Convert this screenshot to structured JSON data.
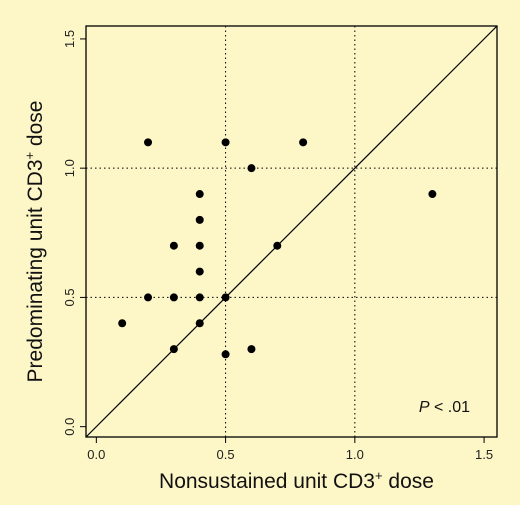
{
  "chart_data": {
    "type": "scatter",
    "title": "",
    "xlabel": "Nonsustained unit CD3",
    "xlabel_sup": "+",
    "xlabel_suffix": " dose",
    "ylabel": "Predominating unit CD3",
    "ylabel_sup": "+",
    "ylabel_suffix": " dose",
    "xlim": [
      -0.04,
      1.55
    ],
    "ylim": [
      -0.04,
      1.55
    ],
    "xticks": [
      "0.0",
      "0.5",
      "1.0",
      "1.5"
    ],
    "yticks": [
      "0.0",
      "0.5",
      "1.0",
      "1.5"
    ],
    "reference_lines": {
      "vertical": [
        0.5,
        1.0
      ],
      "horizontal": [
        0.5,
        1.0
      ],
      "style": "dotted"
    },
    "identity_line": true,
    "grid": false,
    "annotation": {
      "p_label": "P",
      "p_value": " < .01"
    },
    "points": [
      {
        "x": 0.2,
        "y": 1.1
      },
      {
        "x": 0.5,
        "y": 1.1
      },
      {
        "x": 0.8,
        "y": 1.1
      },
      {
        "x": 0.6,
        "y": 1.0
      },
      {
        "x": 0.4,
        "y": 0.9
      },
      {
        "x": 1.3,
        "y": 0.9
      },
      {
        "x": 0.4,
        "y": 0.8
      },
      {
        "x": 0.3,
        "y": 0.7
      },
      {
        "x": 0.4,
        "y": 0.7
      },
      {
        "x": 0.7,
        "y": 0.7
      },
      {
        "x": 0.4,
        "y": 0.6
      },
      {
        "x": 0.2,
        "y": 0.5
      },
      {
        "x": 0.3,
        "y": 0.5
      },
      {
        "x": 0.4,
        "y": 0.5
      },
      {
        "x": 0.5,
        "y": 0.5
      },
      {
        "x": 0.1,
        "y": 0.4
      },
      {
        "x": 0.4,
        "y": 0.4
      },
      {
        "x": 0.3,
        "y": 0.3
      },
      {
        "x": 0.6,
        "y": 0.3
      },
      {
        "x": 0.5,
        "y": 0.28
      }
    ],
    "colors": {
      "background": "#fdf6c6",
      "marker": "#000000",
      "lines": "#000000"
    }
  }
}
